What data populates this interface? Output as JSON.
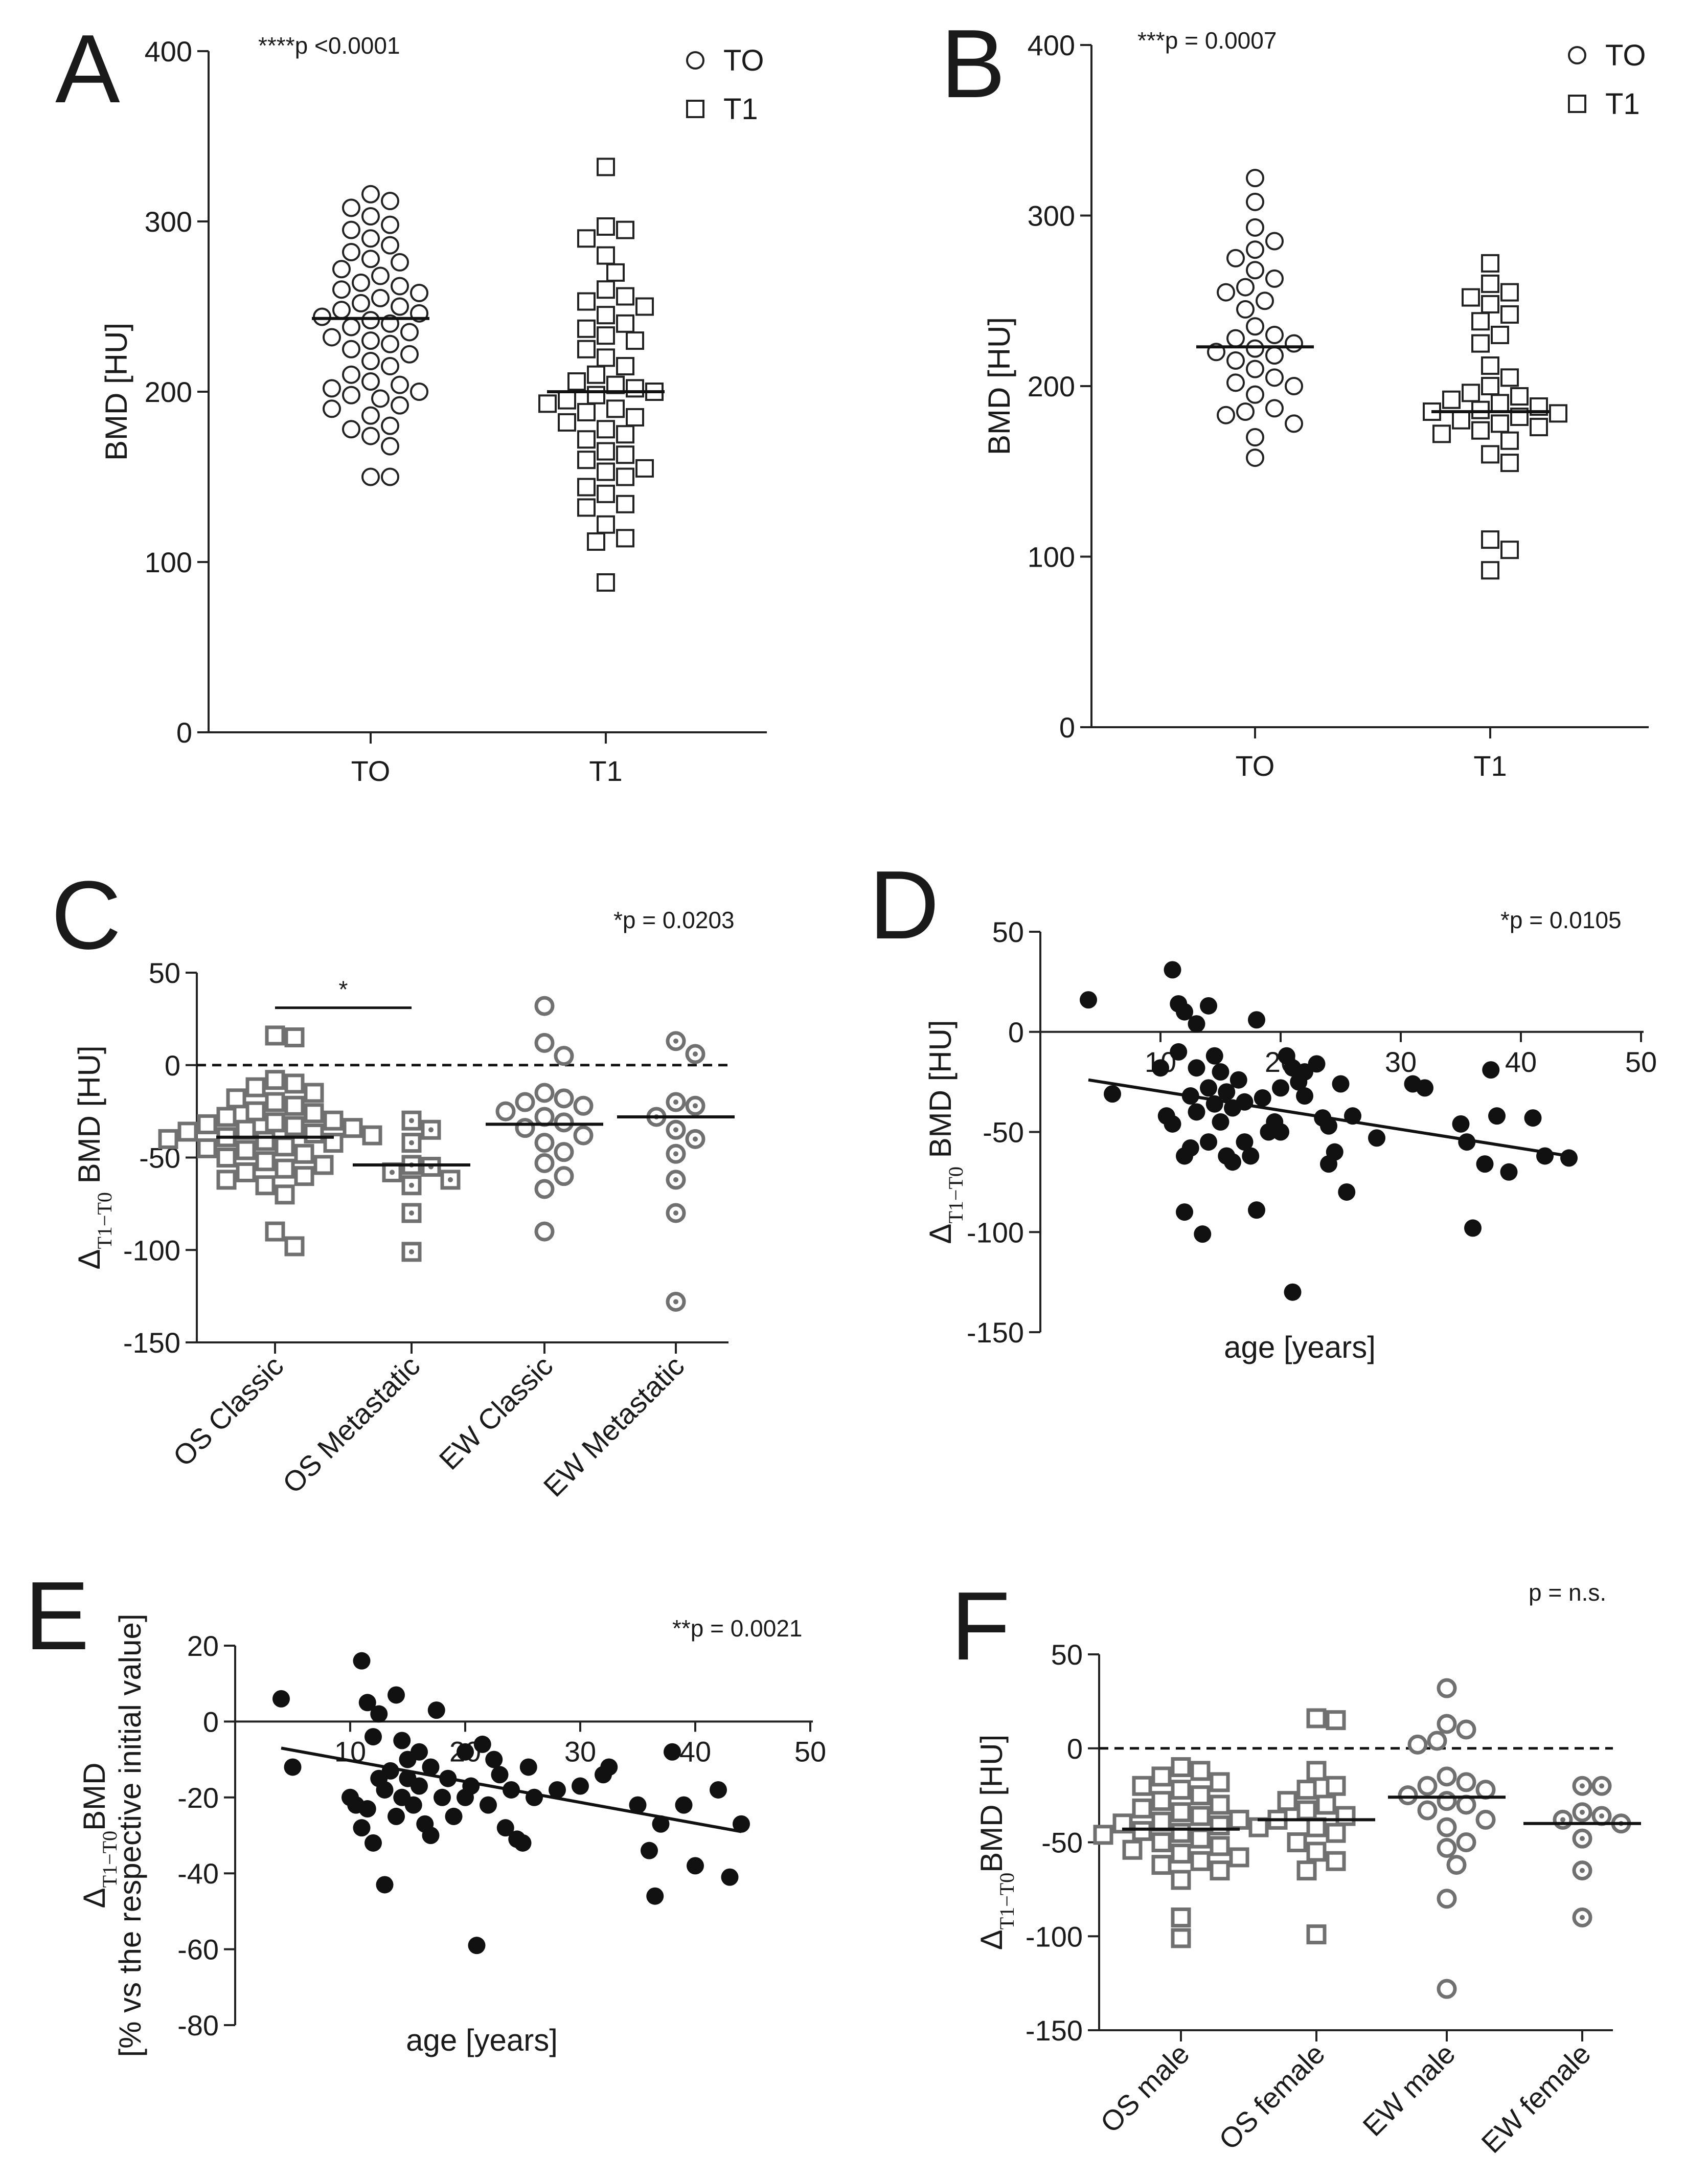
{
  "panels": [
    {
      "letter": "A",
      "type": "scatter",
      "ylabel": "BMD [HU]",
      "ylim": [
        0,
        400
      ],
      "yticks": [
        "0",
        "100",
        "200",
        "300",
        "400"
      ],
      "categories": [
        "TO",
        "T1"
      ],
      "annotation": "****p <0.0001",
      "legend": [
        {
          "label": "TO",
          "marker": "circle"
        },
        {
          "label": "T1",
          "marker": "square"
        }
      ],
      "groups": [
        {
          "name": "TO",
          "marker": "circle",
          "mean": 243,
          "values": [
            150,
            150,
            168,
            174,
            178,
            180,
            186,
            190,
            192,
            196,
            198,
            200,
            202,
            204,
            206,
            210,
            215,
            218,
            222,
            225,
            228,
            230,
            232,
            235,
            238,
            240,
            242,
            244,
            246,
            248,
            250,
            252,
            255,
            258,
            260,
            262,
            264,
            268,
            272,
            276,
            278,
            282,
            286,
            290,
            295,
            298,
            303,
            308,
            312,
            316
          ]
        },
        {
          "name": "T1",
          "marker": "square",
          "mean": 200,
          "values": [
            88,
            112,
            114,
            122,
            132,
            134,
            140,
            144,
            150,
            153,
            155,
            160,
            163,
            165,
            172,
            175,
            178,
            182,
            185,
            188,
            190,
            193,
            195,
            198,
            200,
            202,
            204,
            206,
            210,
            215,
            220,
            225,
            230,
            233,
            237,
            240,
            245,
            250,
            253,
            256,
            260,
            270,
            280,
            290,
            295,
            297,
            332
          ]
        }
      ]
    },
    {
      "letter": "B",
      "type": "scatter",
      "ylabel": "BMD [HU]",
      "ylim": [
        0,
        400
      ],
      "yticks": [
        "0",
        "100",
        "200",
        "300",
        "400"
      ],
      "categories": [
        "TO",
        "T1"
      ],
      "annotation": "***p = 0.0007",
      "legend": [
        {
          "label": "TO",
          "marker": "circle"
        },
        {
          "label": "T1",
          "marker": "square"
        }
      ],
      "groups": [
        {
          "name": "TO",
          "marker": "circle",
          "mean": 223,
          "values": [
            158,
            170,
            178,
            183,
            185,
            187,
            195,
            200,
            202,
            205,
            210,
            215,
            218,
            220,
            222,
            225,
            228,
            230,
            235,
            245,
            250,
            255,
            258,
            263,
            268,
            275,
            280,
            285,
            293,
            308,
            322
          ]
        },
        {
          "name": "T1",
          "marker": "square",
          "mean": 185,
          "values": [
            92,
            104,
            110,
            155,
            160,
            168,
            172,
            174,
            176,
            178,
            180,
            182,
            184,
            185,
            186,
            188,
            190,
            192,
            194,
            196,
            200,
            205,
            212,
            225,
            230,
            238,
            242,
            248,
            252,
            255,
            260,
            272
          ]
        }
      ]
    },
    {
      "letter": "C",
      "type": "scatter",
      "ylabel": "Δ",
      "ylabel_sub": "T1−T0",
      "ylabel_rest": " BMD  [HU]",
      "ylim": [
        -150,
        50
      ],
      "yticks": [
        "-150",
        "-100",
        "-50",
        "0",
        "50"
      ],
      "categories": [
        "OS Classic",
        "OS Metastatic",
        "EW Classic",
        "EW Metastatic"
      ],
      "annotation": "*p = 0.0203",
      "significance": {
        "from": 0,
        "to": 1,
        "y": 31,
        "label": "*"
      },
      "zero_line": true,
      "groups": [
        {
          "name": "OS Classic",
          "marker": "square",
          "mean": -39,
          "values": [
            -98,
            -90,
            -70,
            -65,
            -62,
            -60,
            -58,
            -56,
            -54,
            -52,
            -50,
            -48,
            -46,
            -45,
            -44,
            -42,
            -41,
            -40,
            -39,
            -38,
            -37,
            -36,
            -35,
            -34,
            -33,
            -32,
            -31,
            -30,
            -28,
            -26,
            -25,
            -22,
            -20,
            -18,
            -15,
            -12,
            -10,
            -8,
            15,
            16
          ]
        },
        {
          "name": "OS Metastatic",
          "marker": "square-dot",
          "mean": -54,
          "values": [
            -101,
            -80,
            -65,
            -62,
            -58,
            -55,
            -54,
            -42,
            -35,
            -30
          ]
        },
        {
          "name": "EW Classic",
          "marker": "circle",
          "mean": -32,
          "values": [
            -90,
            -67,
            -60,
            -53,
            -47,
            -42,
            -38,
            -34,
            -31,
            -28,
            -25,
            -22,
            -20,
            -18,
            -15,
            5,
            12,
            32
          ]
        },
        {
          "name": "EW Metastatic",
          "marker": "circle-dot",
          "mean": -28,
          "values": [
            -128,
            -80,
            -62,
            -48,
            -40,
            -35,
            -28,
            -22,
            -20,
            6,
            13
          ]
        }
      ]
    },
    {
      "letter": "D",
      "type": "scatter-regression",
      "ylabel": "Δ",
      "ylabel_sub": "T1−T0",
      "ylabel_rest": " BMD [HU]",
      "xlabel": "age [years]",
      "xlim": [
        0,
        50
      ],
      "ylim": [
        -150,
        50
      ],
      "xticks": [
        "10",
        "20",
        "30",
        "40",
        "50"
      ],
      "yticks": [
        "-150",
        "-100",
        "-50",
        "0",
        "50"
      ],
      "annotation": "*p = 0.0105",
      "fit": {
        "x": [
          4,
          44
        ],
        "y": [
          -24,
          -62
        ]
      },
      "points": [
        [
          4,
          16
        ],
        [
          6,
          -31
        ],
        [
          10,
          -18
        ],
        [
          10.5,
          -42
        ],
        [
          11,
          -46
        ],
        [
          11,
          31
        ],
        [
          11.5,
          14
        ],
        [
          11.5,
          -10
        ],
        [
          12,
          10
        ],
        [
          12,
          -62
        ],
        [
          12,
          -90
        ],
        [
          12.5,
          -32
        ],
        [
          12.5,
          -58
        ],
        [
          13,
          -18
        ],
        [
          13,
          4
        ],
        [
          13,
          -40
        ],
        [
          13.5,
          -101
        ],
        [
          14,
          13
        ],
        [
          14,
          -55
        ],
        [
          14,
          -28
        ],
        [
          14.5,
          -12
        ],
        [
          14.5,
          -36
        ],
        [
          15,
          -20
        ],
        [
          15,
          -45
        ],
        [
          15.5,
          -30
        ],
        [
          15.5,
          -62
        ],
        [
          16,
          -65
        ],
        [
          16,
          -38
        ],
        [
          16.5,
          -24
        ],
        [
          17,
          -35
        ],
        [
          17,
          -55
        ],
        [
          17.5,
          -62
        ],
        [
          18,
          -89
        ],
        [
          18,
          6
        ],
        [
          18.5,
          -33
        ],
        [
          19,
          -50
        ],
        [
          19.5,
          -45
        ],
        [
          20,
          -28
        ],
        [
          20,
          -50
        ],
        [
          20.5,
          -12
        ],
        [
          21,
          -18
        ],
        [
          21,
          -130
        ],
        [
          21.5,
          -25
        ],
        [
          22,
          -20
        ],
        [
          22,
          -32
        ],
        [
          23,
          -16
        ],
        [
          23.5,
          -43
        ],
        [
          24,
          -66
        ],
        [
          24,
          -47
        ],
        [
          24.5,
          -60
        ],
        [
          25,
          -26
        ],
        [
          25.5,
          -80
        ],
        [
          26,
          -42
        ],
        [
          28,
          -53
        ],
        [
          31,
          -26
        ],
        [
          32,
          -28
        ],
        [
          35,
          -46
        ],
        [
          35.5,
          -55
        ],
        [
          36,
          -98
        ],
        [
          37,
          -66
        ],
        [
          37.5,
          -19
        ],
        [
          38,
          -42
        ],
        [
          39,
          -70
        ],
        [
          41,
          -43
        ],
        [
          42,
          -62
        ],
        [
          44,
          -63
        ]
      ]
    },
    {
      "letter": "E",
      "type": "scatter-regression",
      "ylabel_line1_sym": "Δ",
      "ylabel_line1_sub": "T1−T0",
      "ylabel_line1_rest": "BMD",
      "ylabel_line2": "[% vs the respective initial value]",
      "xlabel": "age [years]",
      "xlim": [
        0,
        50
      ],
      "ylim": [
        -80,
        20
      ],
      "xticks": [
        "10",
        "20",
        "30",
        "40",
        "50"
      ],
      "yticks": [
        "-80",
        "-60",
        "-40",
        "-20",
        "0",
        "20"
      ],
      "annotation": "**p = 0.0021",
      "fit": {
        "x": [
          4,
          44
        ],
        "y": [
          -7,
          -29
        ]
      },
      "points": [
        [
          4,
          6
        ],
        [
          5,
          -12
        ],
        [
          10,
          -20
        ],
        [
          10.5,
          -22
        ],
        [
          11,
          16
        ],
        [
          11,
          -28
        ],
        [
          11.5,
          5
        ],
        [
          11.5,
          -23
        ],
        [
          12,
          -32
        ],
        [
          12,
          -4
        ],
        [
          12.5,
          -15
        ],
        [
          12.5,
          2
        ],
        [
          13,
          -18
        ],
        [
          13,
          -43
        ],
        [
          13.5,
          -13
        ],
        [
          14,
          7
        ],
        [
          14,
          -25
        ],
        [
          14.5,
          -5
        ],
        [
          14.5,
          -20
        ],
        [
          15,
          -10
        ],
        [
          15,
          -15
        ],
        [
          15.5,
          -22
        ],
        [
          16,
          -8
        ],
        [
          16,
          -17
        ],
        [
          16.5,
          -27
        ],
        [
          17,
          -12
        ],
        [
          17,
          -30
        ],
        [
          17.5,
          3
        ],
        [
          18,
          -20
        ],
        [
          18.5,
          -15
        ],
        [
          19,
          -25
        ],
        [
          20,
          -8
        ],
        [
          20,
          -20
        ],
        [
          20.5,
          -17
        ],
        [
          21,
          -59
        ],
        [
          21.5,
          -6
        ],
        [
          22,
          -22
        ],
        [
          22.5,
          -10
        ],
        [
          23,
          -14
        ],
        [
          23.5,
          -28
        ],
        [
          24,
          -18
        ],
        [
          24.5,
          -31
        ],
        [
          25,
          -32
        ],
        [
          25.5,
          -12
        ],
        [
          26,
          -20
        ],
        [
          28,
          -18
        ],
        [
          30,
          -17
        ],
        [
          32,
          -14
        ],
        [
          32.5,
          -12
        ],
        [
          35,
          -22
        ],
        [
          36,
          -34
        ],
        [
          36.5,
          -46
        ],
        [
          37,
          -27
        ],
        [
          38,
          -8
        ],
        [
          39,
          -22
        ],
        [
          40,
          -38
        ],
        [
          42,
          -18
        ],
        [
          43,
          -41
        ],
        [
          44,
          -27
        ]
      ]
    },
    {
      "letter": "F",
      "type": "scatter",
      "ylabel": "Δ",
      "ylabel_sub": "T1−T0",
      "ylabel_rest": "BMD [HU]",
      "ylim": [
        -150,
        50
      ],
      "yticks": [
        "-150",
        "-100",
        "-50",
        "0",
        "50"
      ],
      "categories": [
        "OS male",
        "OS female",
        "EW male",
        "EW female"
      ],
      "annotation": "p = n.s.",
      "zero_line": true,
      "groups": [
        {
          "name": "OS male",
          "marker": "square",
          "mean": -43,
          "values": [
            -101,
            -90,
            -70,
            -65,
            -62,
            -60,
            -58,
            -56,
            -54,
            -52,
            -50,
            -48,
            -46,
            -45,
            -44,
            -42,
            -41,
            -40,
            -39,
            -38,
            -36,
            -34,
            -32,
            -30,
            -28,
            -25,
            -22,
            -20,
            -18,
            -15,
            -12,
            -10
          ]
        },
        {
          "name": "OS female",
          "marker": "square",
          "mean": -38,
          "values": [
            -99,
            -65,
            -60,
            -55,
            -50,
            -45,
            -42,
            -38,
            -36,
            -33,
            -30,
            -28,
            -22,
            -20,
            -12,
            15,
            16
          ]
        },
        {
          "name": "EW male",
          "marker": "circle",
          "mean": -26,
          "values": [
            -128,
            -80,
            -62,
            -53,
            -50,
            -42,
            -38,
            -33,
            -30,
            -28,
            -25,
            -22,
            -20,
            -18,
            -15,
            2,
            4,
            10,
            13,
            32
          ]
        },
        {
          "name": "EW female",
          "marker": "circle-dot",
          "mean": -40,
          "values": [
            -90,
            -65,
            -48,
            -40,
            -38,
            -36,
            -34,
            -20,
            -20
          ]
        }
      ]
    }
  ]
}
